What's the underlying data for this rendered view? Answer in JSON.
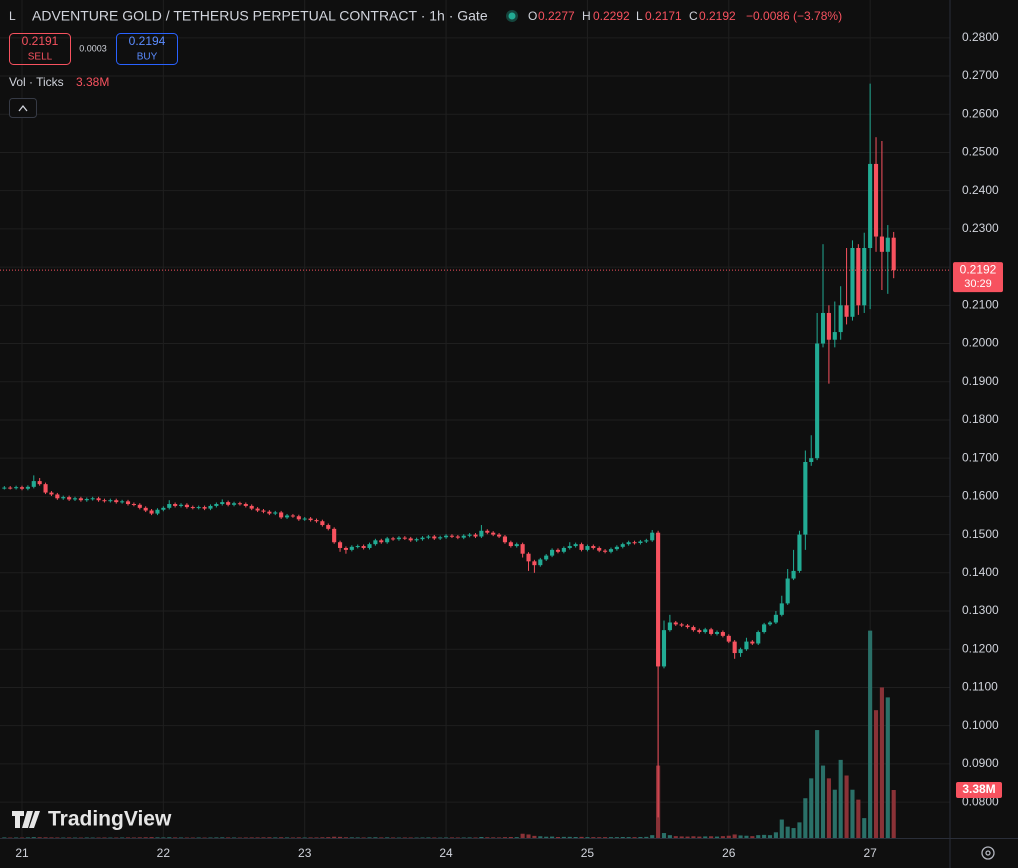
{
  "chart_data": {
    "type": "candlestick",
    "title": "ADVENTURE GOLD / TETHERUS PERPETUAL CONTRACT · 1h · Gate",
    "ohlc_legend": [
      {
        "key": "O",
        "value": 0.2277
      },
      {
        "key": "H",
        "value": 0.2292
      },
      {
        "key": "L",
        "value": 0.2171
      },
      {
        "key": "C",
        "value": 0.2192
      }
    ],
    "change": "−0.0086 (−3.78%)",
    "sell": {
      "price": 0.2191,
      "label": "SELL"
    },
    "spread": 0.0003,
    "buy": {
      "price": 0.2194,
      "label": "BUY"
    },
    "volume_name": "Vol · Ticks",
    "volume_label": "3.38M",
    "last_price": 0.2192,
    "countdown": "30:29",
    "watermark": "TradingView",
    "up_color": "#22ab94",
    "down_color": "#f7525f",
    "volume_up_color": "#2a7068",
    "volume_down_color": "#8a3237",
    "grid": true,
    "xlim": [
      -0.735,
      160.56
    ],
    "xticks": [
      {
        "value": 3,
        "label": "21"
      },
      {
        "value": 27,
        "label": "22"
      },
      {
        "value": 51,
        "label": "23"
      },
      {
        "value": 75,
        "label": "24"
      },
      {
        "value": 99,
        "label": "25"
      },
      {
        "value": 123,
        "label": "26"
      },
      {
        "value": 147,
        "label": "27"
      }
    ],
    "ylim": [
      0.0706,
      0.2899
    ],
    "yticks": [
      {
        "value": 0.08,
        "label": "0.0800"
      },
      {
        "value": 0.09,
        "label": "0.0900"
      },
      {
        "value": 0.1,
        "label": "0.1000"
      },
      {
        "value": 0.11,
        "label": "0.1100"
      },
      {
        "value": 0.12,
        "label": "0.1200"
      },
      {
        "value": 0.13,
        "label": "0.1300"
      },
      {
        "value": 0.14,
        "label": "0.1400"
      },
      {
        "value": 0.15,
        "label": "0.1500"
      },
      {
        "value": 0.16,
        "label": "0.1600"
      },
      {
        "value": 0.17,
        "label": "0.1700"
      },
      {
        "value": 0.18,
        "label": "0.1800"
      },
      {
        "value": 0.19,
        "label": "0.1900"
      },
      {
        "value": 0.2,
        "label": "0.2000"
      },
      {
        "value": 0.21,
        "label": "0.2100"
      },
      {
        "value": 0.22,
        "label": "0.2200"
      },
      {
        "value": 0.23,
        "label": "0.2300"
      },
      {
        "value": 0.24,
        "label": "0.2400"
      },
      {
        "value": 0.25,
        "label": "0.2500"
      },
      {
        "value": 0.26,
        "label": "0.2600"
      },
      {
        "value": 0.27,
        "label": "0.2700"
      },
      {
        "value": 0.28,
        "label": "0.2800"
      }
    ],
    "volume_lim": [
      0,
      59000000
    ],
    "open": [
      0.1622,
      0.1623,
      0.1622,
      0.1624,
      0.162,
      0.1625,
      0.164,
      0.1632,
      0.161,
      0.1605,
      0.1595,
      0.1598,
      0.1592,
      0.1595,
      0.159,
      0.1593,
      0.1595,
      0.159,
      0.1588,
      0.159,
      0.1585,
      0.1587,
      0.158,
      0.1578,
      0.157,
      0.1563,
      0.1555,
      0.1565,
      0.157,
      0.158,
      0.1575,
      0.1578,
      0.1572,
      0.157,
      0.1572,
      0.1568,
      0.1575,
      0.158,
      0.1585,
      0.1578,
      0.1582,
      0.158,
      0.1575,
      0.1568,
      0.1563,
      0.156,
      0.1555,
      0.1558,
      0.1545,
      0.155,
      0.1548,
      0.154,
      0.1542,
      0.1538,
      0.1535,
      0.1525,
      0.1515,
      0.148,
      0.1465,
      0.146,
      0.1468,
      0.147,
      0.1465,
      0.1475,
      0.1485,
      0.148,
      0.149,
      0.1488,
      0.1492,
      0.149,
      0.1485,
      0.1488,
      0.1492,
      0.1495,
      0.149,
      0.1493,
      0.1497,
      0.1495,
      0.1492,
      0.1497,
      0.15,
      0.1495,
      0.151,
      0.1505,
      0.15,
      0.1495,
      0.148,
      0.147,
      0.1475,
      0.145,
      0.143,
      0.142,
      0.1435,
      0.1445,
      0.146,
      0.1455,
      0.1465,
      0.147,
      0.1475,
      0.146,
      0.147,
      0.1465,
      0.1458,
      0.1455,
      0.1462,
      0.1468,
      0.1475,
      0.148,
      0.1478,
      0.1482,
      0.1485,
      0.1505,
      0.1155,
      0.125,
      0.127,
      0.1265,
      0.1262,
      0.1258,
      0.125,
      0.1245,
      0.1252,
      0.124,
      0.1245,
      0.1235,
      0.122,
      0.119,
      0.12,
      0.122,
      0.1215,
      0.1245,
      0.1265,
      0.127,
      0.129,
      0.132,
      0.1385,
      0.1405,
      0.15,
      0.169,
      0.17,
      0.2,
      0.208,
      0.201,
      0.203,
      0.21,
      0.207,
      0.225,
      0.21,
      0.225,
      0.247,
      0.228,
      0.224,
      0.2277
    ],
    "high": [
      0.1627,
      0.1627,
      0.1628,
      0.1628,
      0.1629,
      0.1655,
      0.1648,
      0.1636,
      0.1614,
      0.1609,
      0.1602,
      0.1602,
      0.1599,
      0.1599,
      0.1597,
      0.1599,
      0.1599,
      0.1594,
      0.1594,
      0.1594,
      0.1591,
      0.1591,
      0.1584,
      0.1582,
      0.1574,
      0.1567,
      0.1569,
      0.1574,
      0.159,
      0.1584,
      0.1582,
      0.1582,
      0.1576,
      0.1576,
      0.1576,
      0.1579,
      0.1584,
      0.1592,
      0.1589,
      0.1586,
      0.1586,
      0.1584,
      0.1579,
      0.1572,
      0.1567,
      0.1564,
      0.1562,
      0.1562,
      0.1554,
      0.1554,
      0.1552,
      0.1546,
      0.1546,
      0.1542,
      0.1539,
      0.1529,
      0.1519,
      0.1484,
      0.1469,
      0.1472,
      0.1474,
      0.1474,
      0.1479,
      0.1489,
      0.1489,
      0.1494,
      0.1494,
      0.1496,
      0.1496,
      0.1494,
      0.1492,
      0.1496,
      0.1499,
      0.1499,
      0.1497,
      0.1501,
      0.1501,
      0.1499,
      0.1501,
      0.1504,
      0.1504,
      0.1525,
      0.1514,
      0.1509,
      0.1504,
      0.1499,
      0.1484,
      0.1479,
      0.1479,
      0.1454,
      0.1434,
      0.1439,
      0.1449,
      0.1464,
      0.1464,
      0.1469,
      0.148,
      0.1479,
      0.1479,
      0.1474,
      0.1474,
      0.1469,
      0.1462,
      0.1466,
      0.1472,
      0.1479,
      0.1484,
      0.1484,
      0.1486,
      0.1489,
      0.1512,
      0.151,
      0.1275,
      0.129,
      0.1274,
      0.1269,
      0.1266,
      0.1262,
      0.1254,
      0.1256,
      0.1256,
      0.1249,
      0.1249,
      0.1239,
      0.1224,
      0.1204,
      0.123,
      0.1224,
      0.1249,
      0.1269,
      0.1274,
      0.13,
      0.134,
      0.141,
      0.146,
      0.151,
      0.172,
      0.176,
      0.208,
      0.226,
      0.21,
      0.211,
      0.215,
      0.225,
      0.227,
      0.226,
      0.229,
      0.268,
      0.254,
      0.253,
      0.231,
      0.2292
    ],
    "low": [
      0.1618,
      0.1618,
      0.1618,
      0.1616,
      0.1616,
      0.1621,
      0.1628,
      0.1606,
      0.1601,
      0.1591,
      0.1591,
      0.1588,
      0.1588,
      0.1586,
      0.1586,
      0.1589,
      0.1586,
      0.1584,
      0.1584,
      0.1581,
      0.1581,
      0.1576,
      0.1574,
      0.1566,
      0.1559,
      0.1551,
      0.1551,
      0.1561,
      0.1566,
      0.1571,
      0.1571,
      0.1568,
      0.1566,
      0.1566,
      0.1564,
      0.1564,
      0.1571,
      0.1576,
      0.1574,
      0.1574,
      0.1576,
      0.1571,
      0.1564,
      0.1559,
      0.1556,
      0.1551,
      0.1551,
      0.1541,
      0.1541,
      0.1544,
      0.1536,
      0.1536,
      0.1534,
      0.1531,
      0.1521,
      0.1511,
      0.1476,
      0.1455,
      0.145,
      0.1456,
      0.1464,
      0.1461,
      0.1461,
      0.1471,
      0.1476,
      0.1476,
      0.1484,
      0.1484,
      0.1486,
      0.1481,
      0.1481,
      0.1484,
      0.1488,
      0.1486,
      0.1486,
      0.1489,
      0.1491,
      0.1488,
      0.1488,
      0.1493,
      0.1491,
      0.1491,
      0.1501,
      0.1496,
      0.1491,
      0.1476,
      0.1466,
      0.1466,
      0.144,
      0.1405,
      0.14,
      0.1416,
      0.1431,
      0.1441,
      0.1451,
      0.1451,
      0.1461,
      0.1466,
      0.1456,
      0.1456,
      0.1461,
      0.1454,
      0.1451,
      0.1451,
      0.1458,
      0.1464,
      0.1471,
      0.1474,
      0.1474,
      0.1478,
      0.1481,
      0.076,
      0.115,
      0.1246,
      0.1261,
      0.1258,
      0.1254,
      0.1246,
      0.1241,
      0.1241,
      0.1236,
      0.1236,
      0.1231,
      0.1216,
      0.1175,
      0.118,
      0.1196,
      0.1211,
      0.1211,
      0.1241,
      0.1261,
      0.1266,
      0.1286,
      0.1316,
      0.1381,
      0.14,
      0.146,
      0.168,
      0.1695,
      0.199,
      0.1895,
      0.199,
      0.201,
      0.205,
      0.206,
      0.2075,
      0.208,
      0.209,
      0.224,
      0.214,
      0.213,
      0.2171
    ],
    "close": [
      0.1623,
      0.1622,
      0.1624,
      0.162,
      0.1625,
      0.164,
      0.1632,
      0.161,
      0.1605,
      0.1595,
      0.1598,
      0.1592,
      0.1595,
      0.159,
      0.1593,
      0.1595,
      0.159,
      0.1588,
      0.159,
      0.1585,
      0.1587,
      0.158,
      0.1578,
      0.157,
      0.1563,
      0.1555,
      0.1565,
      0.157,
      0.158,
      0.1575,
      0.1578,
      0.1572,
      0.157,
      0.1572,
      0.1568,
      0.1575,
      0.158,
      0.1585,
      0.1578,
      0.1582,
      0.158,
      0.1575,
      0.1568,
      0.1563,
      0.156,
      0.1555,
      0.1558,
      0.1545,
      0.155,
      0.1548,
      0.154,
      0.1542,
      0.1538,
      0.1535,
      0.1525,
      0.1515,
      0.148,
      0.1465,
      0.146,
      0.1468,
      0.147,
      0.1465,
      0.1475,
      0.1485,
      0.148,
      0.149,
      0.1488,
      0.1492,
      0.149,
      0.1485,
      0.1488,
      0.1492,
      0.1495,
      0.149,
      0.1493,
      0.1497,
      0.1495,
      0.1492,
      0.1497,
      0.15,
      0.1495,
      0.151,
      0.1505,
      0.15,
      0.1495,
      0.148,
      0.147,
      0.1475,
      0.145,
      0.143,
      0.142,
      0.1435,
      0.1445,
      0.146,
      0.1455,
      0.1465,
      0.147,
      0.1475,
      0.146,
      0.147,
      0.1465,
      0.1458,
      0.1455,
      0.1462,
      0.1468,
      0.1475,
      0.148,
      0.1478,
      0.1482,
      0.1485,
      0.1505,
      0.1155,
      0.125,
      0.127,
      0.1265,
      0.1262,
      0.1258,
      0.125,
      0.1245,
      0.1252,
      0.124,
      0.1245,
      0.1235,
      0.122,
      0.119,
      0.12,
      0.122,
      0.1215,
      0.1245,
      0.1265,
      0.127,
      0.129,
      0.132,
      0.1385,
      0.1405,
      0.15,
      0.169,
      0.17,
      0.2,
      0.208,
      0.201,
      0.203,
      0.21,
      0.207,
      0.225,
      0.21,
      0.225,
      0.247,
      0.228,
      0.224,
      0.2277,
      0.2192
    ],
    "volume": [
      40000,
      30000,
      35000,
      30000,
      40000,
      60000,
      50000,
      45000,
      40000,
      35000,
      30000,
      35000,
      30000,
      30000,
      35000,
      30000,
      30000,
      35000,
      30000,
      30000,
      35000,
      40000,
      35000,
      45000,
      50000,
      60000,
      45000,
      40000,
      50000,
      40000,
      35000,
      30000,
      30000,
      35000,
      30000,
      35000,
      40000,
      45000,
      40000,
      35000,
      30000,
      35000,
      40000,
      40000,
      45000,
      50000,
      40000,
      50000,
      40000,
      35000,
      45000,
      35000,
      40000,
      40000,
      50000,
      60000,
      90000,
      80000,
      50000,
      45000,
      40000,
      35000,
      45000,
      50000,
      40000,
      45000,
      35000,
      30000,
      35000,
      35000,
      30000,
      35000,
      40000,
      35000,
      30000,
      35000,
      40000,
      35000,
      35000,
      40000,
      35000,
      70000,
      50000,
      45000,
      40000,
      60000,
      70000,
      60000,
      300000,
      250000,
      150000,
      120000,
      90000,
      100000,
      70000,
      80000,
      80000,
      70000,
      80000,
      60000,
      60000,
      55000,
      60000,
      60000,
      60000,
      70000,
      65000,
      60000,
      70000,
      80000,
      200000,
      5100000,
      350000,
      200000,
      130000,
      110000,
      100000,
      120000,
      100000,
      110000,
      120000,
      100000,
      130000,
      160000,
      250000,
      180000,
      160000,
      130000,
      200000,
      220000,
      200000,
      400000,
      1300000,
      800000,
      700000,
      1100000,
      2800000,
      4200000,
      7600000,
      5100000,
      4200000,
      3400000,
      5500000,
      4400000,
      3400000,
      2700000,
      1400000,
      14600000,
      9000000,
      10600000,
      9900000,
      3380000
    ]
  }
}
